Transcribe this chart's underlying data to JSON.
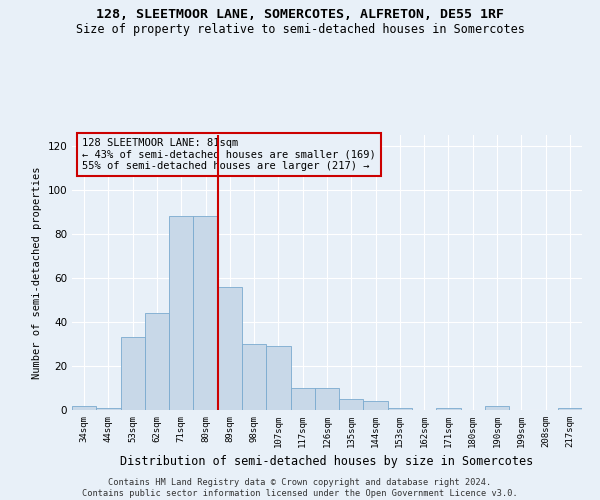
{
  "title_line1": "128, SLEETMOOR LANE, SOMERCOTES, ALFRETON, DE55 1RF",
  "title_line2": "Size of property relative to semi-detached houses in Somercotes",
  "xlabel": "Distribution of semi-detached houses by size in Somercotes",
  "ylabel": "Number of semi-detached properties",
  "categories": [
    "34sqm",
    "44sqm",
    "53sqm",
    "62sqm",
    "71sqm",
    "80sqm",
    "89sqm",
    "98sqm",
    "107sqm",
    "117sqm",
    "126sqm",
    "135sqm",
    "144sqm",
    "153sqm",
    "162sqm",
    "171sqm",
    "180sqm",
    "190sqm",
    "199sqm",
    "208sqm",
    "217sqm"
  ],
  "values": [
    2,
    1,
    33,
    44,
    88,
    88,
    56,
    30,
    29,
    10,
    10,
    5,
    4,
    1,
    0,
    1,
    0,
    2,
    0,
    0,
    1
  ],
  "bar_color": "#c8d8e8",
  "bar_edge_color": "#7aaacf",
  "vline_x_idx": 5.5,
  "vline_color": "#cc0000",
  "annotation_text": "128 SLEETMOOR LANE: 81sqm\n← 43% of semi-detached houses are smaller (169)\n55% of semi-detached houses are larger (217) →",
  "annotation_box_edgecolor": "#cc0000",
  "annotation_fontsize": 7.5,
  "footnote": "Contains HM Land Registry data © Crown copyright and database right 2024.\nContains public sector information licensed under the Open Government Licence v3.0.",
  "background_color": "#e8f0f8",
  "ylim": [
    0,
    125
  ],
  "yticks": [
    0,
    20,
    40,
    60,
    80,
    100,
    120
  ],
  "title_fontsize": 9.5,
  "subtitle_fontsize": 8.5,
  "xlabel_fontsize": 8.5,
  "ylabel_fontsize": 7.5
}
